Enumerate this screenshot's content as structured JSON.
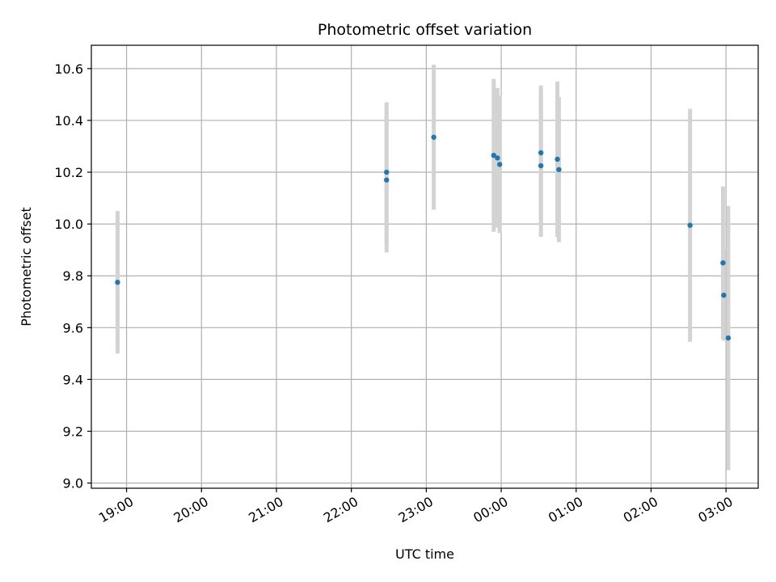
{
  "chart_data": {
    "type": "scatter",
    "title": "Photometric offset variation",
    "xlabel": "UTC time",
    "ylabel": "Photometric offset",
    "x_ticks": [
      "19:00",
      "20:00",
      "21:00",
      "22:00",
      "23:00",
      "00:00",
      "01:00",
      "02:00",
      "03:00"
    ],
    "x_tick_hours": [
      19,
      20,
      21,
      22,
      23,
      24,
      25,
      26,
      27
    ],
    "xlim_hours": [
      18.53,
      27.43
    ],
    "ylim": [
      8.98,
      10.69
    ],
    "y_ticks": [
      9.0,
      9.2,
      9.4,
      9.6,
      9.8,
      10.0,
      10.2,
      10.4,
      10.6
    ],
    "y_tick_labels": [
      "9.0",
      "9.2",
      "9.4",
      "9.6",
      "9.8",
      "10.0",
      "10.2",
      "10.4",
      "10.6"
    ],
    "grid": true,
    "point_color": "#1f77b4",
    "errorbar_color": "#d3d3d3",
    "points": [
      {
        "t": 18.88,
        "y": 9.775,
        "err": 0.275
      },
      {
        "t": 22.47,
        "y": 10.2,
        "err": 0.27
      },
      {
        "t": 22.47,
        "y": 10.17,
        "err": 0.28
      },
      {
        "t": 23.1,
        "y": 10.335,
        "err": 0.28
      },
      {
        "t": 23.9,
        "y": 10.265,
        "err": 0.295
      },
      {
        "t": 23.95,
        "y": 10.255,
        "err": 0.27
      },
      {
        "t": 23.98,
        "y": 10.23,
        "err": 0.265
      },
      {
        "t": 24.53,
        "y": 10.275,
        "err": 0.26
      },
      {
        "t": 24.53,
        "y": 10.225,
        "err": 0.275
      },
      {
        "t": 24.75,
        "y": 10.25,
        "err": 0.3
      },
      {
        "t": 24.77,
        "y": 10.21,
        "err": 0.28
      },
      {
        "t": 26.52,
        "y": 9.995,
        "err": 0.45
      },
      {
        "t": 26.96,
        "y": 9.85,
        "err": 0.295
      },
      {
        "t": 26.97,
        "y": 9.725,
        "err": 0.175
      },
      {
        "t": 27.03,
        "y": 9.56,
        "err": 0.51
      }
    ]
  }
}
